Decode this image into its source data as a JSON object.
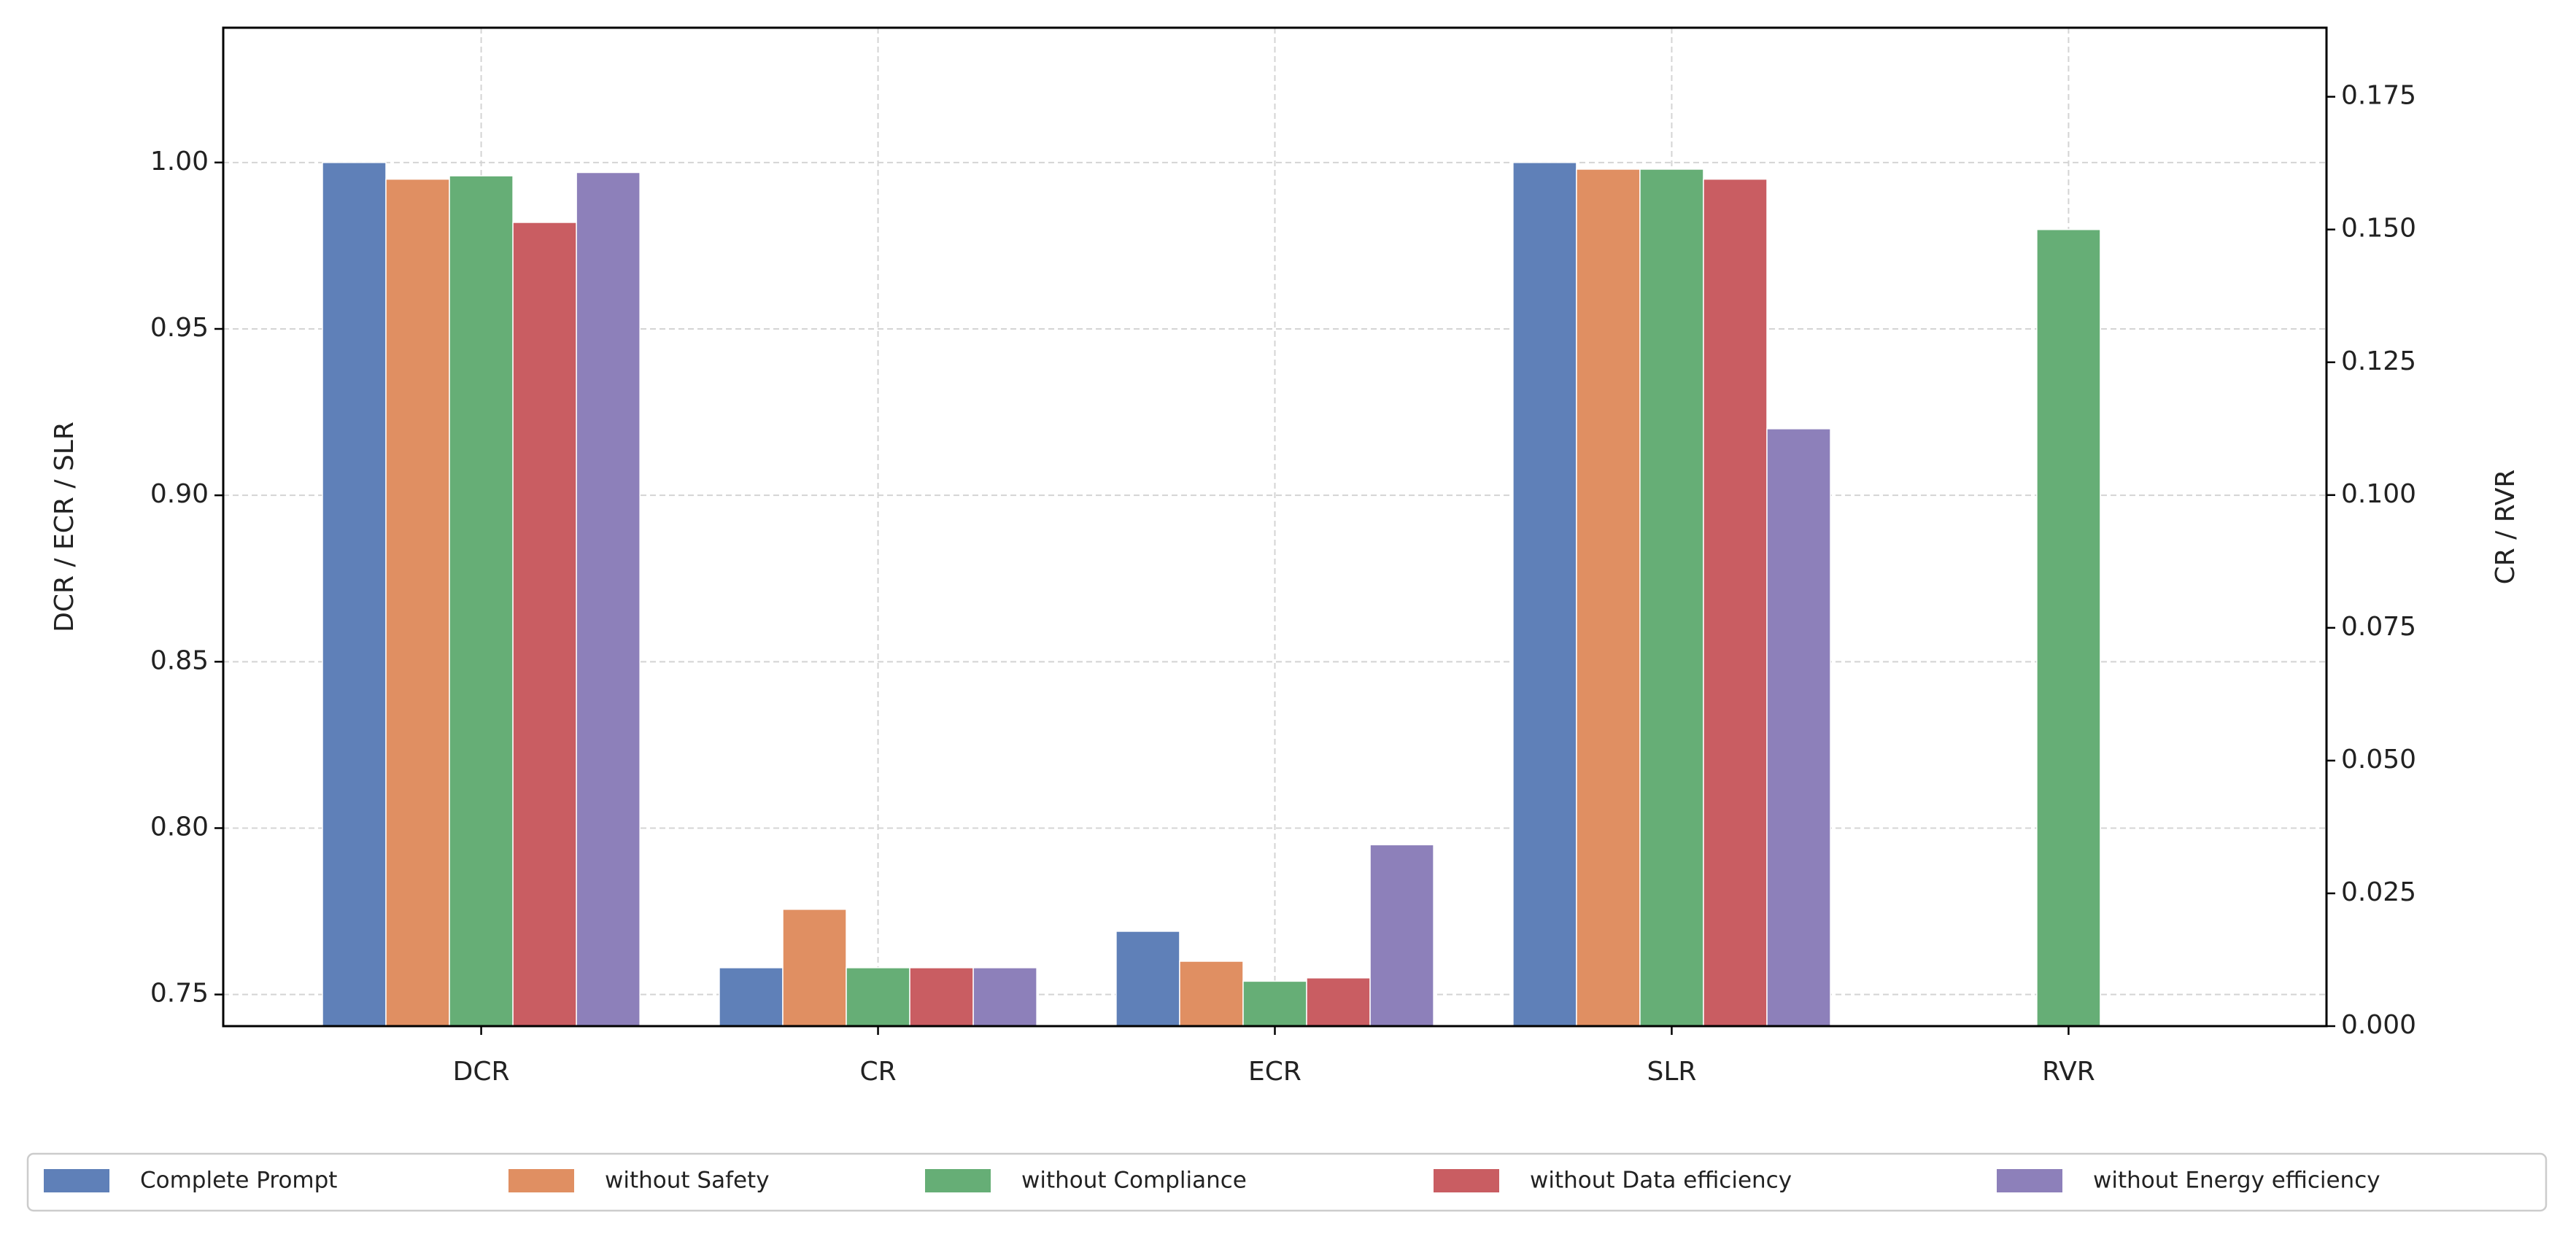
{
  "chart_data": {
    "type": "bar",
    "categories": [
      "DCR",
      "CR",
      "ECR",
      "SLR",
      "RVR"
    ],
    "category_axes": [
      "y",
      "y2",
      "y",
      "y",
      "y2"
    ],
    "y_label": "DCR / ECR / SLR",
    "y2_label": "CR / RVR",
    "ylim": [
      0.7405,
      1.0405
    ],
    "yticks": [
      0.75,
      {
        "value": 0.8,
        "label": "0.80"
      },
      0.85,
      {
        "value": 0.9,
        "label": "0.90"
      },
      0.95,
      {
        "value": 1.0,
        "label": "1.00"
      }
    ],
    "y2lim": [
      0,
      0.188
    ],
    "y2ticks": [
      {
        "value": 0,
        "label": "0.000"
      },
      0.025,
      {
        "value": 0.05,
        "label": "0.050"
      },
      0.075,
      {
        "value": 0.1,
        "label": "0.100"
      },
      0.125,
      {
        "value": 0.15,
        "label": "0.150"
      },
      0.175
    ],
    "grid": true,
    "legend_position": "bottom",
    "series": [
      {
        "name": "Complete Prompt",
        "color": "#5f80b8",
        "values": [
          1.0,
          0.011,
          0.769,
          1.0,
          0
        ]
      },
      {
        "name": "without Safety",
        "color": "#e08f62",
        "values": [
          0.995,
          0.022,
          0.76,
          0.998,
          0
        ]
      },
      {
        "name": "without Compliance",
        "color": "#66ae76",
        "values": [
          0.996,
          0.011,
          0.754,
          0.998,
          0.15
        ]
      },
      {
        "name": "without Data efficiency",
        "color": "#c95d62",
        "values": [
          0.982,
          0.011,
          0.755,
          0.995,
          0
        ]
      },
      {
        "name": "without Energy efficiency",
        "color": "#8d80ba",
        "values": [
          0.997,
          0.011,
          0.795,
          0.92,
          0
        ]
      }
    ]
  }
}
